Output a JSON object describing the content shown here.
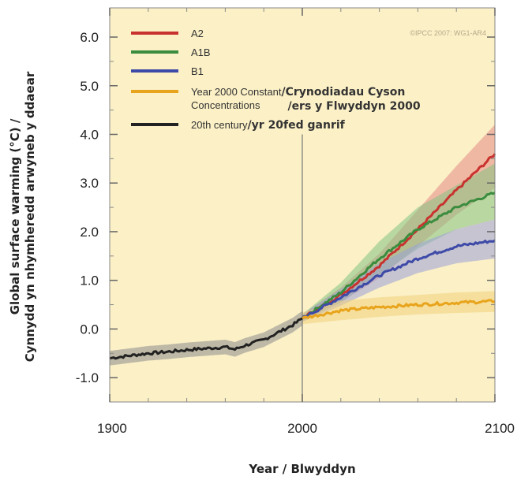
{
  "chart_data": {
    "type": "line",
    "title": "",
    "credit": "©IPCC 2007: WG1-AR4",
    "xlabel": "Year / Blwyddyn",
    "ylabel_line1": "Global surface warming (°C) /",
    "ylabel_line2": "Cynnydd yn nhymheredd arwyneb y ddaear",
    "xlim": [
      1900,
      2100
    ],
    "ylim": [
      -1.5,
      6.6
    ],
    "x_ticks": [
      1900,
      2000,
      2100
    ],
    "x_tick_labels": [
      "1900",
      "2000",
      "2100"
    ],
    "y_ticks": [
      -1.0,
      0.0,
      1.0,
      2.0,
      3.0,
      4.0,
      5.0,
      6.0
    ],
    "y_tick_labels": [
      "-1.0",
      "0.0",
      "1.0",
      "2.0",
      "3.0",
      "4.0",
      "5.0",
      "6.0"
    ],
    "reference_line_x": 2000,
    "legend_position": "top-left",
    "legend": [
      {
        "series": "A2",
        "label": "A2",
        "label_cy": "",
        "color": "#c8322e"
      },
      {
        "series": "A1B",
        "label": "A1B",
        "label_cy": "",
        "color": "#3b8c3e"
      },
      {
        "series": "B1",
        "label": "B1",
        "label_cy": "",
        "color": "#3e4aa8"
      },
      {
        "series": "Constant",
        "label": "Year 2000 Constant",
        "label2": "Concentrations",
        "label_cy": "/Crynodiadau Cyson",
        "label_cy2": "/ers y Flwyddyn 2000",
        "color": "#e8a41c"
      },
      {
        "series": "20th century",
        "label": "20th century",
        "label_cy": "/yr 20fed ganrif",
        "color": "#222222"
      }
    ],
    "series": [
      {
        "name": "20th century",
        "color": "#222222",
        "band_color": "#8c8c8c",
        "x": [
          1900,
          1910,
          1920,
          1930,
          1940,
          1950,
          1960,
          1965,
          1970,
          1975,
          1980,
          1985,
          1990,
          1995,
          2000
        ],
        "y": [
          -0.6,
          -0.55,
          -0.5,
          -0.47,
          -0.43,
          -0.4,
          -0.37,
          -0.42,
          -0.34,
          -0.28,
          -0.22,
          -0.12,
          -0.02,
          0.08,
          0.22
        ],
        "band_half_width": 0.15
      },
      {
        "name": "A2",
        "color": "#c8322e",
        "band_color": "#e58a86",
        "x": [
          2000,
          2020,
          2040,
          2060,
          2080,
          2100
        ],
        "y": [
          0.22,
          0.7,
          1.3,
          2.05,
          2.85,
          3.6
        ],
        "lower": [
          0.15,
          0.55,
          1.05,
          1.7,
          2.35,
          2.9
        ],
        "upper": [
          0.3,
          0.85,
          1.55,
          2.45,
          3.35,
          4.2
        ]
      },
      {
        "name": "A1B",
        "color": "#3b8c3e",
        "band_color": "#83c283",
        "x": [
          2000,
          2020,
          2040,
          2060,
          2080,
          2100
        ],
        "y": [
          0.22,
          0.75,
          1.45,
          2.05,
          2.5,
          2.8
        ],
        "lower": [
          0.15,
          0.55,
          1.1,
          1.65,
          2.05,
          2.25
        ],
        "upper": [
          0.3,
          0.95,
          1.8,
          2.5,
          2.95,
          3.4
        ]
      },
      {
        "name": "B1",
        "color": "#3e4aa8",
        "band_color": "#9aa0d9",
        "x": [
          2000,
          2020,
          2040,
          2060,
          2080,
          2100
        ],
        "y": [
          0.22,
          0.65,
          1.1,
          1.45,
          1.7,
          1.82
        ],
        "lower": [
          0.15,
          0.48,
          0.85,
          1.15,
          1.35,
          1.45
        ],
        "upper": [
          0.3,
          0.82,
          1.35,
          1.75,
          2.05,
          2.25
        ]
      },
      {
        "name": "Year 2000 Constant Concentrations",
        "color": "#e8a41c",
        "band_color": "#f3d27a",
        "x": [
          2000,
          2020,
          2040,
          2060,
          2080,
          2100
        ],
        "y": [
          0.22,
          0.38,
          0.45,
          0.5,
          0.54,
          0.57
        ],
        "lower": [
          0.1,
          0.18,
          0.25,
          0.3,
          0.33,
          0.35
        ],
        "upper": [
          0.34,
          0.58,
          0.65,
          0.7,
          0.75,
          0.78
        ]
      }
    ]
  }
}
